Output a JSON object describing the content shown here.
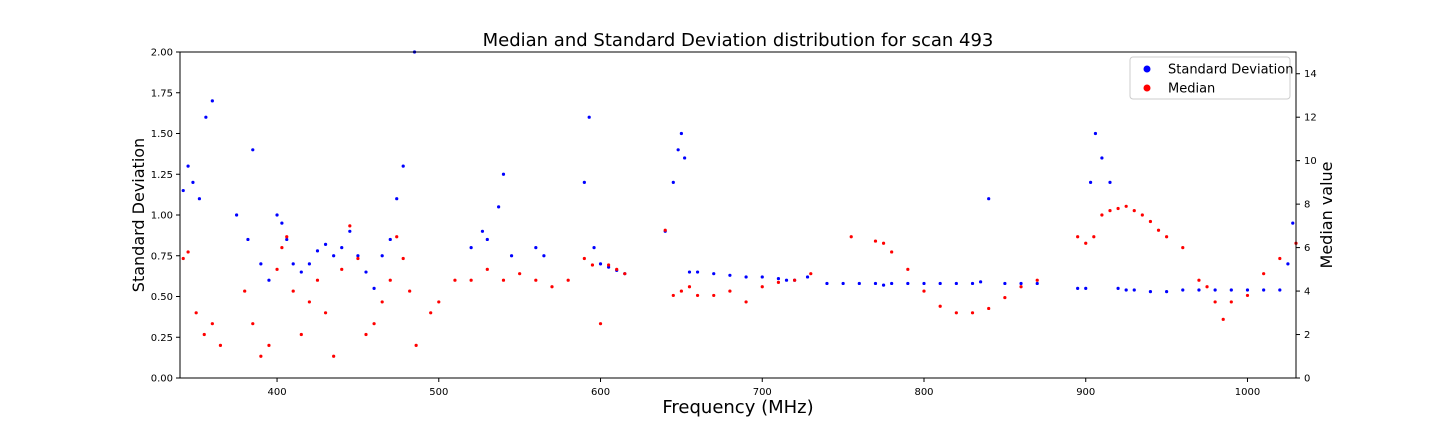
{
  "chart_data": {
    "type": "scatter",
    "title": "Median and Standard Deviation distribution for scan 493",
    "xlabel": "Frequency (MHz)",
    "ylabel_left": "Standard Deviation",
    "ylabel_right": "Median value",
    "xlim": [
      340,
      1030
    ],
    "ylim_left": [
      0,
      2.0
    ],
    "ylim_right": [
      0,
      15
    ],
    "xticks": [
      400,
      500,
      600,
      700,
      800,
      900,
      1000
    ],
    "yticks_left": [
      0.0,
      0.25,
      0.5,
      0.75,
      1.0,
      1.25,
      1.5,
      1.75,
      2.0
    ],
    "yticks_left_labels": [
      "0.00",
      "0.25",
      "0.50",
      "0.75",
      "1.00",
      "1.25",
      "1.50",
      "1.75",
      "2.00"
    ],
    "yticks_right": [
      0,
      2,
      4,
      6,
      8,
      10,
      12,
      14
    ],
    "grid": false,
    "legend_position": "top-right",
    "series": [
      {
        "name": "Standard Deviation",
        "axis": "left",
        "color": "#0000ff",
        "x": [
          342,
          345,
          348,
          352,
          356,
          360,
          375,
          382,
          385,
          390,
          395,
          400,
          403,
          406,
          410,
          415,
          420,
          425,
          430,
          435,
          440,
          445,
          450,
          455,
          460,
          465,
          470,
          474,
          478,
          485,
          520,
          527,
          530,
          537,
          540,
          545,
          560,
          565,
          590,
          593,
          596,
          600,
          605,
          610,
          615,
          640,
          645,
          648,
          650,
          652,
          655,
          660,
          670,
          680,
          690,
          700,
          710,
          715,
          720,
          728,
          740,
          750,
          760,
          770,
          775,
          780,
          790,
          800,
          810,
          820,
          830,
          835,
          840,
          850,
          860,
          870,
          895,
          900,
          903,
          906,
          910,
          915,
          920,
          925,
          930,
          940,
          950,
          960,
          970,
          980,
          990,
          1000,
          1010,
          1020,
          1025,
          1028
        ],
        "y": [
          1.15,
          1.3,
          1.2,
          1.1,
          1.6,
          1.7,
          1.0,
          0.85,
          1.4,
          0.7,
          0.6,
          1.0,
          0.95,
          0.85,
          0.7,
          0.65,
          0.7,
          0.78,
          0.82,
          0.75,
          0.8,
          0.9,
          0.75,
          0.65,
          0.55,
          0.75,
          0.85,
          1.1,
          1.3,
          2.0,
          0.8,
          0.9,
          0.85,
          1.05,
          1.25,
          0.75,
          0.8,
          0.75,
          1.2,
          1.6,
          0.8,
          0.7,
          0.68,
          0.66,
          0.64,
          0.9,
          1.2,
          1.4,
          1.5,
          1.35,
          0.65,
          0.65,
          0.64,
          0.63,
          0.62,
          0.62,
          0.61,
          0.6,
          0.6,
          0.62,
          0.58,
          0.58,
          0.58,
          0.58,
          0.57,
          0.58,
          0.58,
          0.58,
          0.58,
          0.58,
          0.58,
          0.59,
          1.1,
          0.58,
          0.58,
          0.58,
          0.55,
          0.55,
          1.2,
          1.5,
          1.35,
          1.2,
          0.55,
          0.54,
          0.54,
          0.53,
          0.53,
          0.54,
          0.54,
          0.54,
          0.54,
          0.54,
          0.54,
          0.54,
          0.7,
          0.95
        ]
      },
      {
        "name": "Median",
        "axis": "right",
        "color": "#ff0000",
        "x": [
          342,
          345,
          350,
          355,
          360,
          365,
          380,
          385,
          390,
          395,
          400,
          403,
          406,
          410,
          415,
          420,
          425,
          430,
          435,
          440,
          445,
          450,
          455,
          460,
          465,
          470,
          474,
          478,
          482,
          486,
          495,
          500,
          510,
          520,
          530,
          540,
          550,
          560,
          570,
          580,
          590,
          595,
          600,
          605,
          610,
          615,
          640,
          645,
          650,
          655,
          660,
          670,
          680,
          690,
          700,
          710,
          720,
          730,
          755,
          770,
          775,
          780,
          790,
          800,
          810,
          820,
          830,
          840,
          850,
          860,
          870,
          895,
          900,
          905,
          910,
          915,
          920,
          925,
          930,
          935,
          940,
          945,
          950,
          960,
          970,
          975,
          980,
          985,
          990,
          1000,
          1010,
          1020,
          1030
        ],
        "y": [
          5.5,
          5.8,
          3.0,
          2.0,
          2.5,
          1.5,
          4.0,
          2.5,
          1.0,
          1.5,
          5.0,
          6.0,
          6.5,
          4.0,
          2.0,
          3.5,
          4.5,
          3.0,
          1.0,
          5.0,
          7.0,
          5.5,
          2.0,
          2.5,
          3.5,
          4.5,
          6.5,
          5.5,
          4.0,
          1.5,
          3.0,
          3.5,
          4.5,
          4.5,
          5.0,
          4.5,
          4.8,
          4.5,
          4.2,
          4.5,
          5.5,
          5.2,
          2.5,
          5.2,
          5.0,
          4.8,
          6.8,
          3.8,
          4.0,
          4.2,
          3.8,
          3.8,
          4.0,
          3.5,
          4.2,
          4.4,
          4.5,
          4.8,
          6.5,
          6.3,
          6.2,
          5.8,
          5.0,
          4.0,
          3.3,
          3.0,
          3.0,
          3.2,
          3.7,
          4.2,
          4.5,
          6.5,
          6.2,
          6.5,
          7.5,
          7.7,
          7.8,
          7.9,
          7.7,
          7.5,
          7.2,
          6.8,
          6.5,
          6.0,
          4.5,
          4.2,
          3.5,
          2.7,
          3.5,
          3.8,
          4.8,
          5.5,
          6.2
        ]
      }
    ]
  }
}
